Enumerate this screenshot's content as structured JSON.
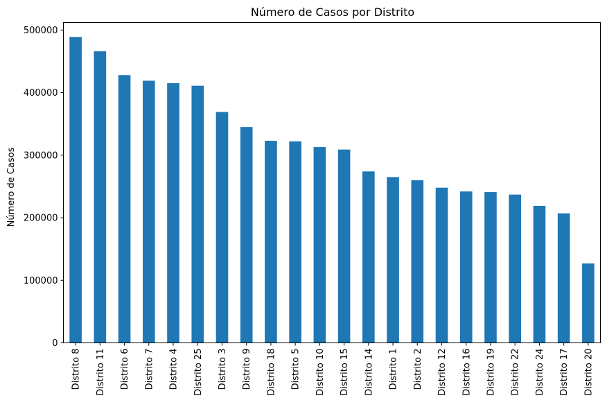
{
  "chart_data": {
    "type": "bar",
    "title": "Número de Casos por Distrito",
    "xlabel": "",
    "ylabel": "Número de Casos",
    "ylim": [
      0,
      512000
    ],
    "yticks": [
      0,
      100000,
      200000,
      300000,
      400000,
      500000
    ],
    "grid": false,
    "legend": "none",
    "bar_color": "#1f77b4",
    "categories": [
      "Distrito 8",
      "Distrito 11",
      "Distrito 6",
      "Distrito 7",
      "Distrito 4",
      "Distrito 25",
      "Distrito 3",
      "Distrito 9",
      "Distrito 18",
      "Distrito 5",
      "Distrito 10",
      "Distrito 15",
      "Distrito 14",
      "Distrito 1",
      "Distrito 2",
      "Distrito 12",
      "Distrito 16",
      "Distrito 19",
      "Distrito 22",
      "Distrito 24",
      "Distrito 17",
      "Distrito 20"
    ],
    "values": [
      489000,
      466000,
      428000,
      419000,
      415000,
      411000,
      369000,
      345000,
      323000,
      322000,
      313000,
      309000,
      274000,
      265000,
      260000,
      248000,
      242000,
      241000,
      237000,
      219000,
      207000,
      127000
    ]
  }
}
